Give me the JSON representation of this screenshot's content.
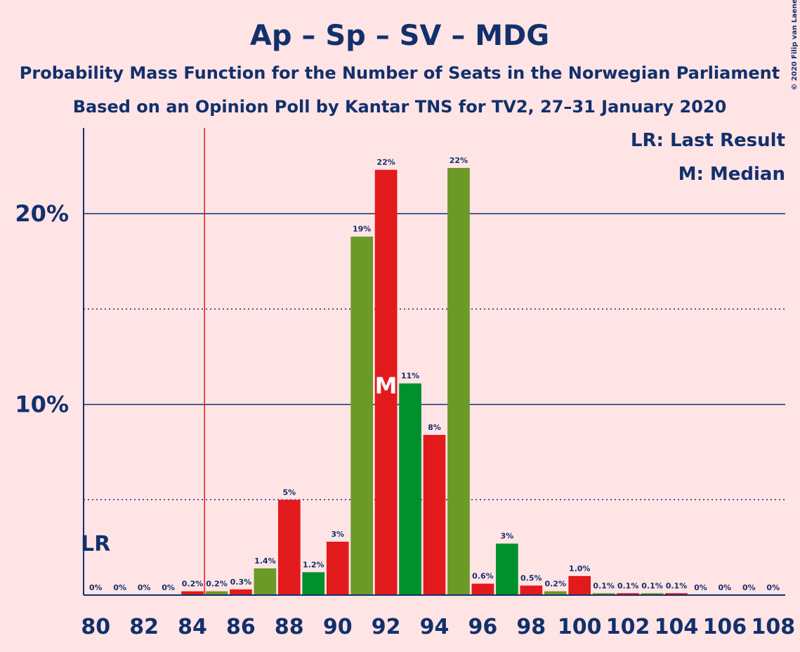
{
  "chart_data": {
    "type": "bar",
    "title": "Ap – Sp – SV – MDG",
    "subtitle": "Probability Mass Function for the Number of Seats in the Norwegian Parliament",
    "subtitle2": "Based on an Opinion Poll by Kantar TNS for TV2, 27–31 January 2020",
    "copyright": "© 2020 Filip van Laenen",
    "legend": [
      "LR: Last Result",
      "M: Median"
    ],
    "x": [
      80,
      81,
      82,
      83,
      84,
      85,
      86,
      87,
      88,
      89,
      90,
      91,
      92,
      93,
      94,
      95,
      96,
      97,
      98,
      99,
      100,
      101,
      102,
      103,
      104,
      105,
      106,
      107,
      108
    ],
    "values": [
      0,
      0,
      0,
      0,
      0.2,
      0.2,
      0.3,
      1.4,
      5,
      1.2,
      2.8,
      18.8,
      22.3,
      11.1,
      8.4,
      22.4,
      0.6,
      2.7,
      0.5,
      0.2,
      1.0,
      0.1,
      0.1,
      0.1,
      0.1,
      0,
      0,
      0,
      0
    ],
    "value_labels": [
      "0%",
      "0%",
      "0%",
      "0%",
      "0.2%",
      "0.2%",
      "0.3%",
      "1.4%",
      "5%",
      "1.2%",
      "3%",
      "19%",
      "22%",
      "11%",
      "8%",
      "22%",
      "0.6%",
      "3%",
      "0.5%",
      "0.2%",
      "1.0%",
      "0.1%",
      "0.1%",
      "0.1%",
      "0.1%",
      "0%",
      "0%",
      "0%",
      "0%"
    ],
    "colors": [
      "#e31a1c",
      "#6b9a26",
      "#e31a1c",
      "#6b9a26",
      "#e31a1c",
      "#6b9a26",
      "#e31a1c",
      "#6b9a26",
      "#e31a1c",
      "#00902e",
      "#e31a1c",
      "#6b9a26",
      "#e31a1c",
      "#00902e",
      "#e31a1c",
      "#6b9a26",
      "#e31a1c",
      "#00902e",
      "#e31a1c",
      "#6b9a26",
      "#e31a1c",
      "#6b9a26",
      "#e31a1c",
      "#6b9a26",
      "#e31a1c",
      "#6b9a26",
      "#e31a1c",
      "#6b9a26",
      "#e31a1c"
    ],
    "xlim": [
      79.5,
      108.5
    ],
    "xticks": [
      80,
      82,
      84,
      86,
      88,
      90,
      92,
      94,
      96,
      98,
      100,
      102,
      104,
      106,
      108
    ],
    "ylim": [
      0,
      24.5
    ],
    "yticks": [
      {
        "value": 10,
        "label": "10%"
      },
      {
        "value": 20,
        "label": "20%"
      }
    ],
    "minor_yticks": [
      5,
      15
    ],
    "last_result_x": 84.5,
    "last_result_label": "LR",
    "median": 92,
    "median_label": "M"
  }
}
